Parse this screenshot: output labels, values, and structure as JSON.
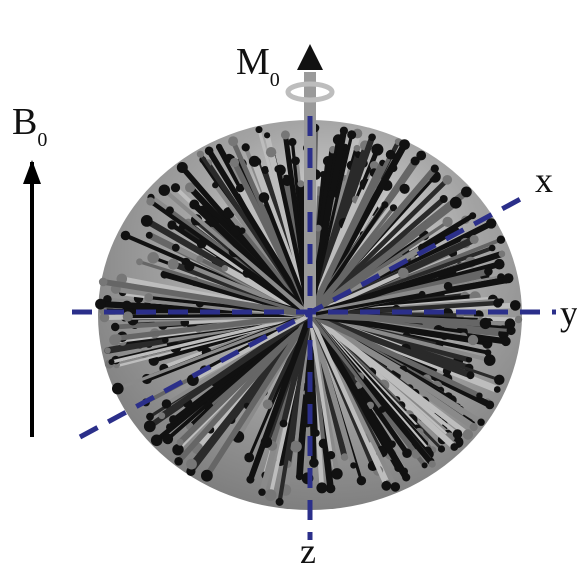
{
  "labels": {
    "b0_letter": "B",
    "b0_sub": "0",
    "m0_letter": "M",
    "m0_sub": "0",
    "axis_x": "x",
    "axis_y": "y",
    "axis_z": "z"
  },
  "colors": {
    "axis_dashes": "#2b2f8a",
    "arrow_dark": "#111111",
    "arrow_mid": "#666666",
    "arrow_light": "#bdbdbd",
    "background": "#ffffff"
  },
  "icons": {
    "b0_arrow": "up-arrow-icon",
    "m0_arrow": "up-arrow-icon"
  }
}
